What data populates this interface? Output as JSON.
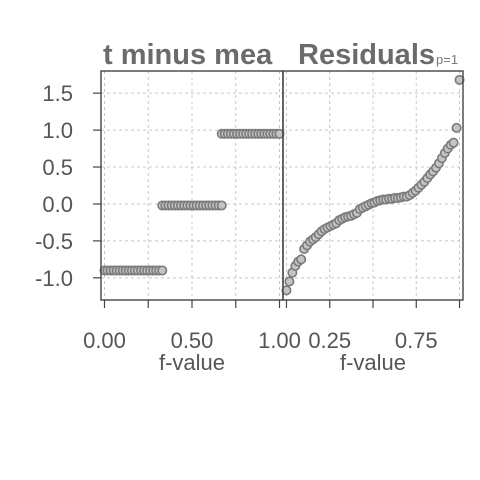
{
  "chart_data": [
    {
      "type": "scatter",
      "title": "t minus mea",
      "xlabel": "f-value",
      "ylabel": "",
      "xlim": [
        -0.02,
        1.02
      ],
      "ylim": [
        -1.3,
        1.8
      ],
      "xticks": [
        "0.00",
        "0.50",
        "1.00"
      ],
      "yticks": [
        "-1.0",
        "-0.5",
        "0.0",
        "0.5",
        "1.0",
        "1.5"
      ],
      "grid": true,
      "groups": [
        {
          "y": -0.9,
          "x_start": 0.0,
          "x_end": 0.33,
          "count": 20
        },
        {
          "y": -0.02,
          "x_start": 0.33,
          "x_end": 0.67,
          "count": 20
        },
        {
          "y": 0.95,
          "x_start": 0.67,
          "x_end": 1.0,
          "count": 20
        }
      ]
    },
    {
      "type": "scatter",
      "title": "Residuals",
      "panel_label": "p=1",
      "xlabel": "f-value",
      "ylabel": "",
      "xlim": [
        -0.02,
        1.02
      ],
      "ylim": [
        -1.3,
        1.8
      ],
      "xticks": [
        "0.25",
        "0.75"
      ],
      "grid": true,
      "points": [
        [
          0.0,
          -1.17
        ],
        [
          0.017,
          -1.05
        ],
        [
          0.034,
          -0.93
        ],
        [
          0.051,
          -0.84
        ],
        [
          0.068,
          -0.78
        ],
        [
          0.085,
          -0.75
        ],
        [
          0.102,
          -0.61
        ],
        [
          0.119,
          -0.56
        ],
        [
          0.136,
          -0.51
        ],
        [
          0.153,
          -0.48
        ],
        [
          0.169,
          -0.45
        ],
        [
          0.186,
          -0.41
        ],
        [
          0.203,
          -0.37
        ],
        [
          0.22,
          -0.34
        ],
        [
          0.237,
          -0.32
        ],
        [
          0.254,
          -0.3
        ],
        [
          0.271,
          -0.28
        ],
        [
          0.288,
          -0.26
        ],
        [
          0.305,
          -0.22
        ],
        [
          0.322,
          -0.2
        ],
        [
          0.339,
          -0.18
        ],
        [
          0.356,
          -0.17
        ],
        [
          0.373,
          -0.16
        ],
        [
          0.39,
          -0.14
        ],
        [
          0.407,
          -0.12
        ],
        [
          0.424,
          -0.07
        ],
        [
          0.441,
          -0.05
        ],
        [
          0.458,
          -0.03
        ],
        [
          0.475,
          -0.01
        ],
        [
          0.492,
          0.01
        ],
        [
          0.508,
          0.02
        ],
        [
          0.525,
          0.04
        ],
        [
          0.542,
          0.05
        ],
        [
          0.559,
          0.06
        ],
        [
          0.576,
          0.06
        ],
        [
          0.593,
          0.07
        ],
        [
          0.61,
          0.07
        ],
        [
          0.627,
          0.08
        ],
        [
          0.644,
          0.08
        ],
        [
          0.661,
          0.09
        ],
        [
          0.678,
          0.1
        ],
        [
          0.695,
          0.1
        ],
        [
          0.712,
          0.12
        ],
        [
          0.729,
          0.15
        ],
        [
          0.746,
          0.18
        ],
        [
          0.763,
          0.22
        ],
        [
          0.78,
          0.26
        ],
        [
          0.797,
          0.3
        ],
        [
          0.814,
          0.35
        ],
        [
          0.831,
          0.4
        ],
        [
          0.847,
          0.44
        ],
        [
          0.864,
          0.49
        ],
        [
          0.881,
          0.55
        ],
        [
          0.898,
          0.62
        ],
        [
          0.915,
          0.69
        ],
        [
          0.932,
          0.75
        ],
        [
          0.949,
          0.8
        ],
        [
          0.966,
          0.83
        ],
        [
          0.983,
          1.03
        ],
        [
          1.0,
          1.68
        ]
      ]
    }
  ]
}
